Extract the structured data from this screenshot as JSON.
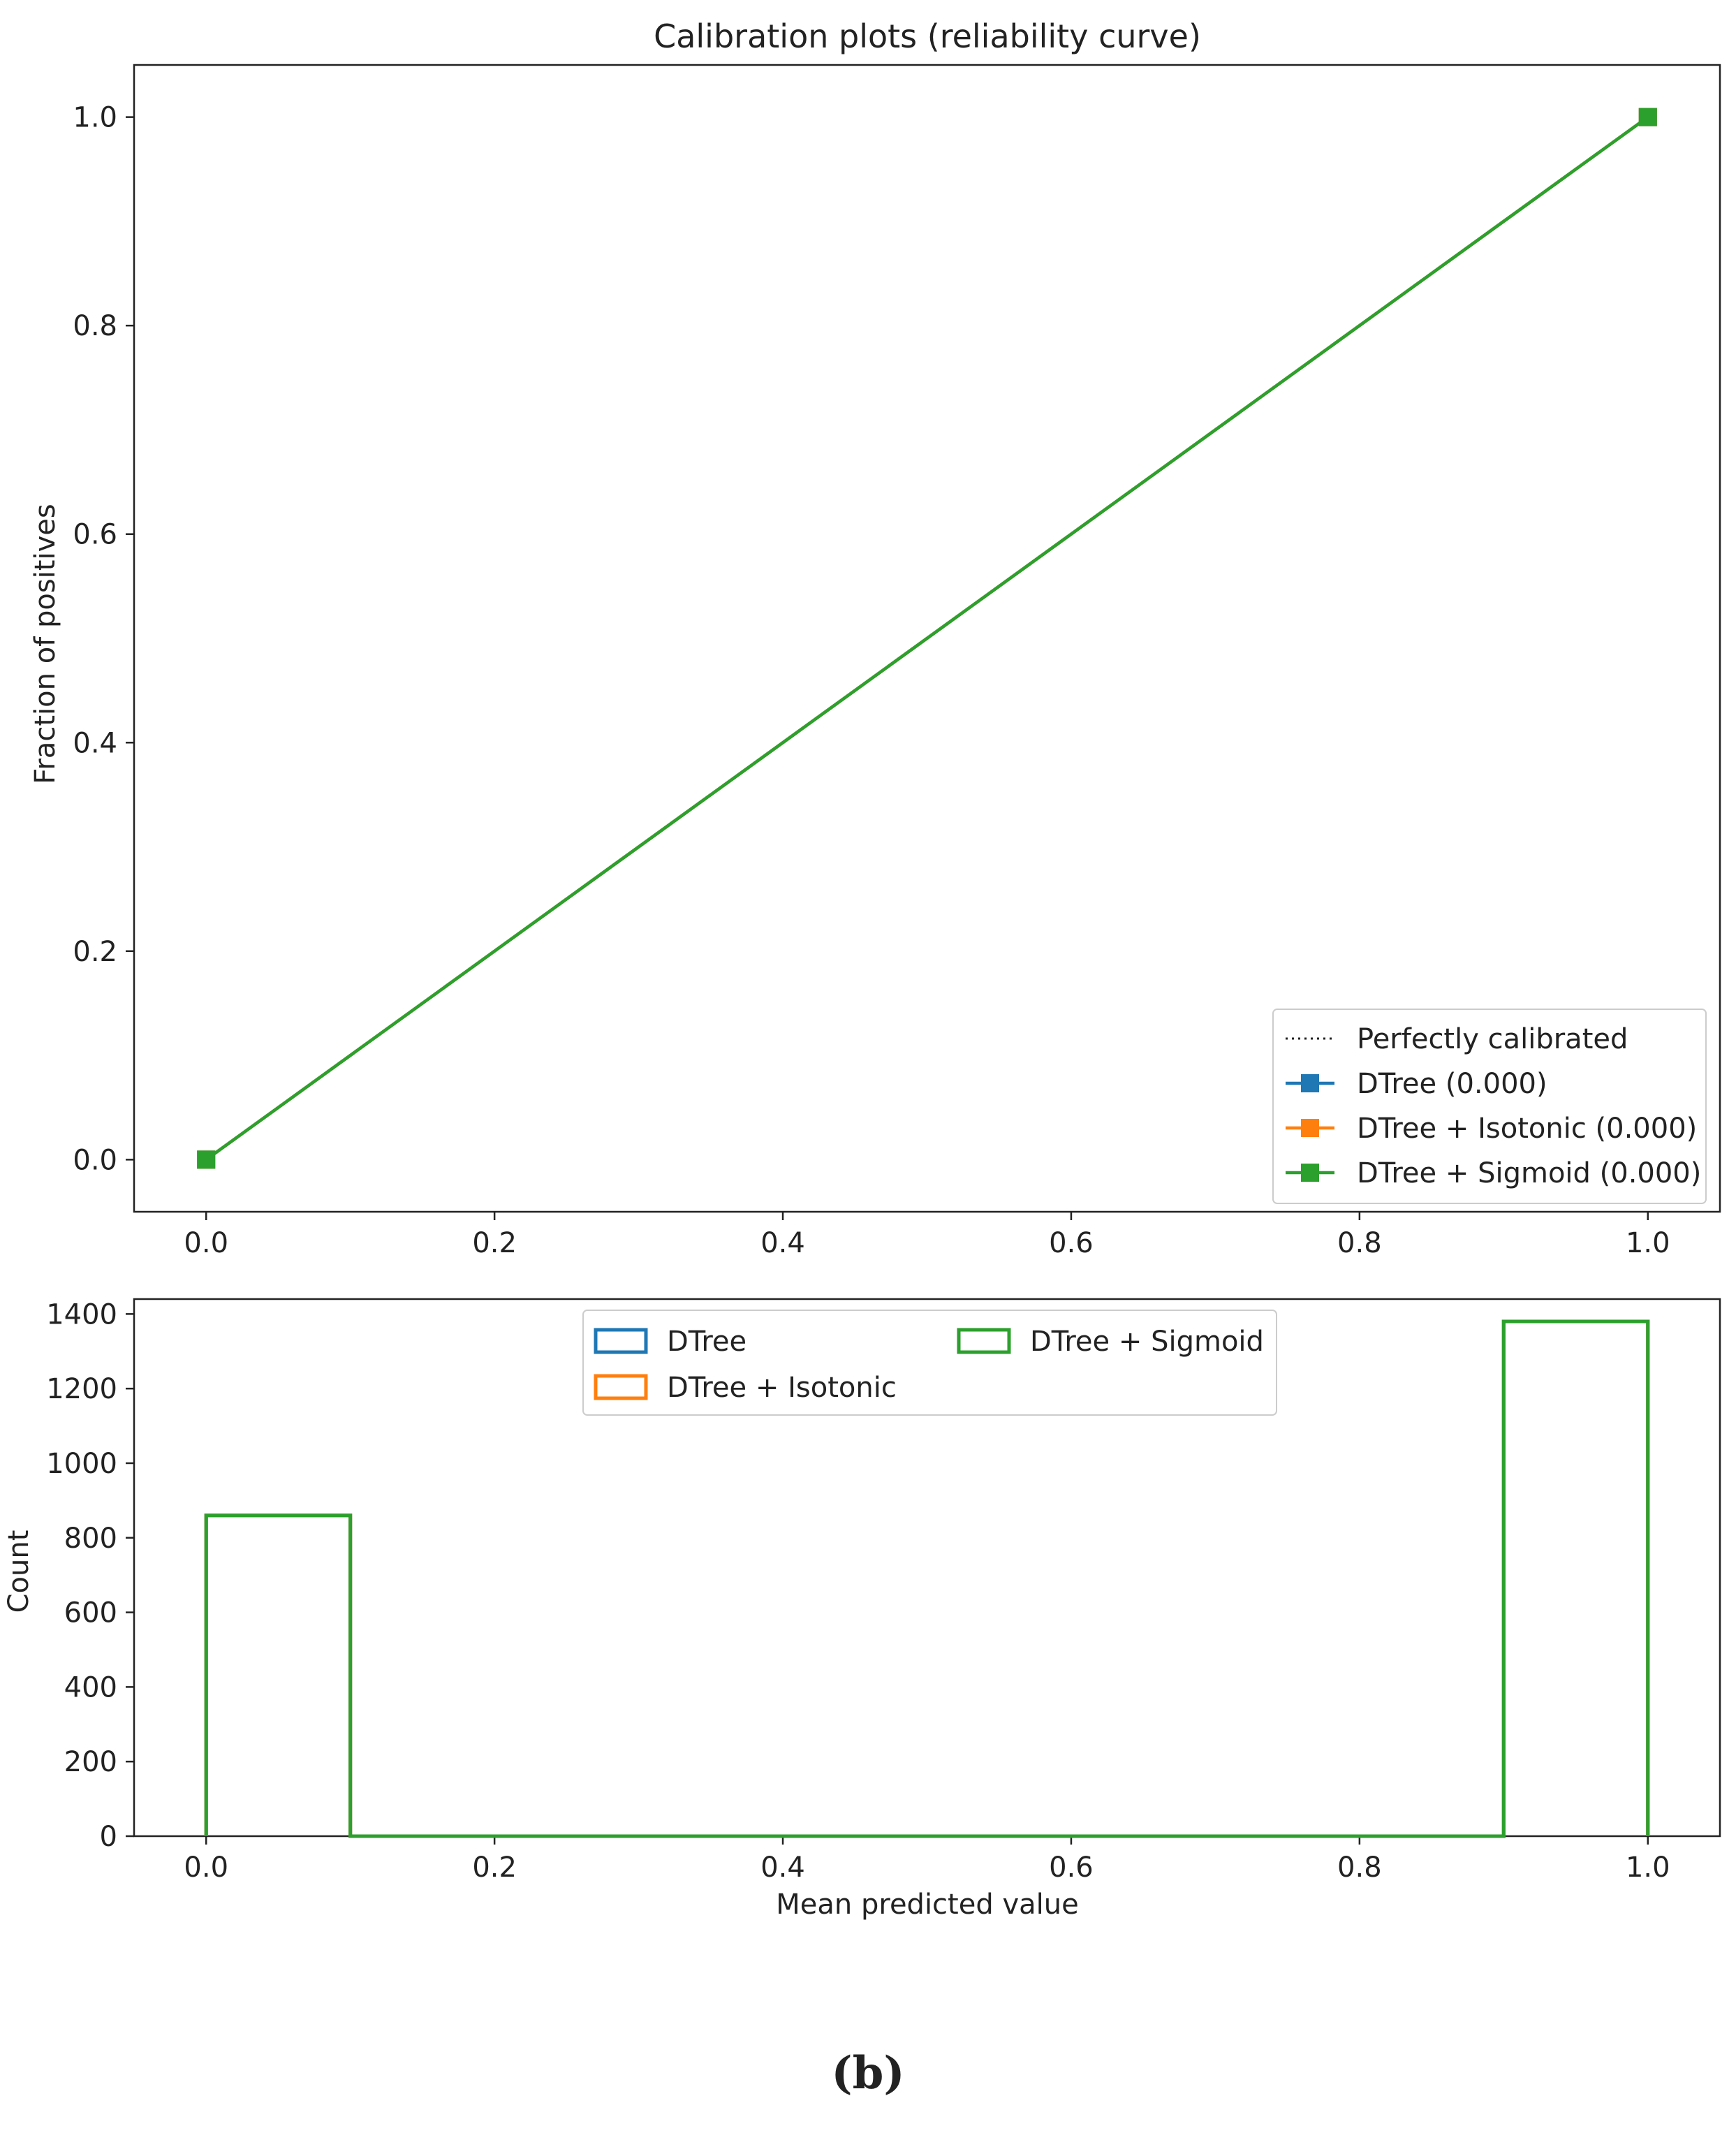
{
  "chart_data": [
    {
      "type": "line",
      "title": "Calibration plots  (reliability curve)",
      "xlabel": "",
      "ylabel": "Fraction of positives",
      "xlim": [
        -0.05,
        1.05
      ],
      "ylim": [
        -0.05,
        1.05
      ],
      "xticks": [
        0.0,
        0.2,
        0.4,
        0.6,
        0.8,
        1.0
      ],
      "xtick_labels": [
        "0.0",
        "0.2",
        "0.4",
        "0.6",
        "0.8",
        "1.0"
      ],
      "yticks": [
        0.0,
        0.2,
        0.4,
        0.6,
        0.8,
        1.0
      ],
      "ytick_labels": [
        "0.0",
        "0.2",
        "0.4",
        "0.6",
        "0.8",
        "1.0"
      ],
      "grid": false,
      "legend_position": "lower-right",
      "series": [
        {
          "name": "Perfectly calibrated",
          "x": [
            0,
            1
          ],
          "y": [
            0,
            1
          ],
          "style": "dotted",
          "marker": "none",
          "color": "#222222"
        },
        {
          "name": "DTree (0.000)",
          "x": [
            0.0,
            1.0
          ],
          "y": [
            0.0,
            1.0
          ],
          "style": "solid",
          "marker": "square",
          "color": "#1f77b4"
        },
        {
          "name": "DTree + Isotonic (0.000)",
          "x": [
            0.0,
            1.0
          ],
          "y": [
            0.0,
            1.0
          ],
          "style": "solid",
          "marker": "square",
          "color": "#ff7f0e"
        },
        {
          "name": "DTree + Sigmoid (0.000)",
          "x": [
            0.0,
            1.0
          ],
          "y": [
            0.0,
            1.0
          ],
          "style": "solid",
          "marker": "square",
          "color": "#2ca02c"
        }
      ]
    },
    {
      "type": "bar",
      "histtype": "step",
      "title": "",
      "xlabel": "Mean predicted value",
      "ylabel": "Count",
      "xlim": [
        -0.05,
        1.05
      ],
      "ylim": [
        0,
        1440
      ],
      "xticks": [
        0.0,
        0.2,
        0.4,
        0.6,
        0.8,
        1.0
      ],
      "xtick_labels": [
        "0.0",
        "0.2",
        "0.4",
        "0.6",
        "0.8",
        "1.0"
      ],
      "yticks": [
        0,
        200,
        400,
        600,
        800,
        1000,
        1200,
        1400
      ],
      "ytick_labels": [
        "0",
        "200",
        "400",
        "600",
        "800",
        "1000",
        "1200",
        "1400"
      ],
      "grid": false,
      "legend_position": "upper-center",
      "legend_columns": 2,
      "bin_edges": [
        0.0,
        0.1,
        0.2,
        0.3,
        0.4,
        0.5,
        0.6,
        0.7,
        0.8,
        0.9,
        1.0
      ],
      "series": [
        {
          "name": "DTree",
          "values": [
            860,
            0,
            0,
            0,
            0,
            0,
            0,
            0,
            0,
            1380
          ],
          "color": "#1f77b4"
        },
        {
          "name": "DTree + Isotonic",
          "values": [
            860,
            0,
            0,
            0,
            0,
            0,
            0,
            0,
            0,
            1380
          ],
          "color": "#ff7f0e"
        },
        {
          "name": "DTree + Sigmoid",
          "values": [
            860,
            0,
            0,
            0,
            0,
            0,
            0,
            0,
            0,
            1380
          ],
          "color": "#2ca02c"
        }
      ]
    }
  ],
  "caption": "(b)"
}
